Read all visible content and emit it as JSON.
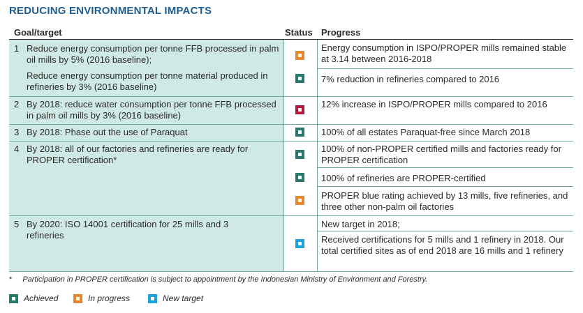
{
  "title": "REDUCING ENVIRONMENTAL IMPACTS",
  "headers": {
    "goal": "Goal/target",
    "status": "Status",
    "progress": "Progress"
  },
  "rows": [
    {
      "num": "1",
      "goal": "Reduce energy consumption per tonne FFB processed in palm oil mills by 5% (2016 baseline);",
      "status": "In progress",
      "progress": "Energy consumption in ISPO/PROPER mills remained stable at 3.14 between 2016-2018"
    },
    {
      "num": "",
      "goal": "Reduce energy consumption per tonne material produced in refineries by 3% (2016 baseline)",
      "status": "Achieved",
      "progress": "7% reduction in refineries compared to 2016"
    },
    {
      "num": "2",
      "goal": "By 2018: reduce water consumption per tonne FFB processed in palm oil mills by 3% (2016 baseline)",
      "status": "Not achieved",
      "progress": "12% increase in ISPO/PROPER mills compared to 2016"
    },
    {
      "num": "3",
      "goal": "By 2018: Phase out the use of Paraquat",
      "status": "Achieved",
      "progress": "100% of all estates Paraquat-free since March 2018"
    },
    {
      "num": "4",
      "goal": "By 2018: all of our factories and refineries are ready for PROPER certification*",
      "status": "Achieved",
      "progress": "100% of non-PROPER certified mills and factories ready for PROPER certification"
    },
    {
      "num": "",
      "goal": "",
      "status": "Achieved",
      "progress": "100% of refineries are PROPER-certified"
    },
    {
      "num": "",
      "goal": "",
      "status": "In progress",
      "progress": "PROPER blue rating achieved by 13 mills, five refineries, and three other non-palm oil factories"
    },
    {
      "num": "5",
      "goal": "By 2020: ISO 14001 certification for 25 mills and 3 refineries",
      "status": "",
      "progress": "New target in 2018;"
    },
    {
      "num": "",
      "goal": "",
      "status": "New target",
      "progress": "Received certifications for 5 mills and 1 refinery in 2018. Our total certified sites as of end 2018 are 16 mills and 1 refinery"
    }
  ],
  "footnote": {
    "marker": "*",
    "text": "Participation in PROPER certification is subject to appointment by the Indonesian Ministry of Environment and Forestry."
  },
  "legend": [
    {
      "label": "Achieved",
      "color": "#27786b"
    },
    {
      "label": "In progress",
      "color": "#e8862c"
    },
    {
      "label": "New target",
      "color": "#1aa3df"
    }
  ],
  "colors": {
    "achieved": "#27786b",
    "in_progress": "#e8862c",
    "new_target": "#1aa3df",
    "not_achieved": "#b3173b",
    "title": "#1f5d8f",
    "goal_bg": "#cfe9e4"
  }
}
